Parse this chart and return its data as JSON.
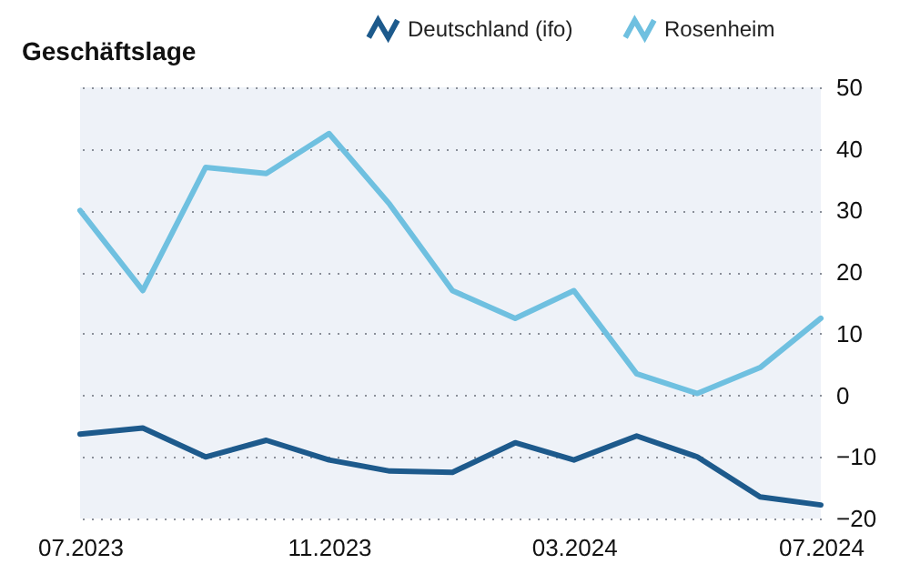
{
  "chart_data": {
    "type": "line",
    "title": "Geschäftslage",
    "x": [
      "2023-07",
      "2023-08",
      "2023-09",
      "2023-10",
      "2023-11",
      "2023-12",
      "2024-01",
      "2024-02",
      "2024-03",
      "2024-04",
      "2024-05",
      "2024-06",
      "2024-07"
    ],
    "series": [
      {
        "name": "Deutschland (ifo)",
        "color": "#1d5a8c",
        "values": [
          -6.3,
          -5.3,
          -10,
          -7.3,
          -10.5,
          -12.3,
          -12.5,
          -7.7,
          -10.5,
          -6.6,
          -10,
          -16.5,
          -17.8
        ]
      },
      {
        "name": "Rosenheim",
        "color": "#6fc0e0",
        "values": [
          30,
          17,
          37,
          36,
          42.5,
          31,
          17,
          12.5,
          17,
          3.5,
          0.3,
          4.5,
          12.5
        ]
      }
    ],
    "xlim": [
      "2023-07",
      "2024-07"
    ],
    "xticks": [
      {
        "value": "2023-07",
        "label": "07.2023"
      },
      {
        "value": "2023-11",
        "label": "11.2023"
      },
      {
        "value": "2024-03",
        "label": "03.2024"
      },
      {
        "value": "2024-07",
        "label": "07.2024"
      }
    ],
    "ylim": [
      -20,
      50
    ],
    "yticks": [
      -20,
      -10,
      0,
      10,
      20,
      30,
      40,
      50
    ],
    "grid": "y",
    "legend": "top right",
    "line_style": "solid",
    "marker": "none"
  }
}
